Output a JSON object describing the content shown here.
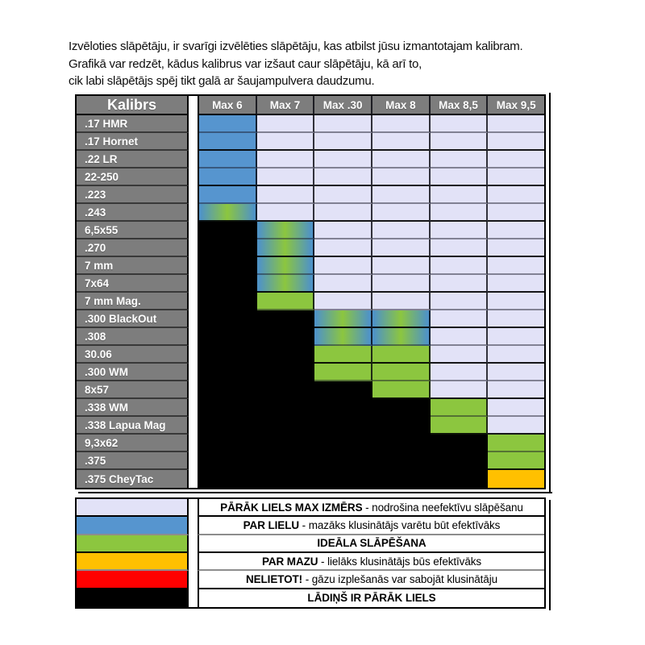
{
  "intro": {
    "lines": [
      "Izvēloties slāpētāju, ir svarīgi izvēlēties slāpētāju, kas atbilst jūsu izmantotajam kalibram.",
      "Grafikā var redzēt, kādus kalibrus var izšaut caur slāpētāju, kā arī to,",
      "cik labi slāpētājs spēj tikt galā ar šaujampulvera daudzumu."
    ]
  },
  "chart_data": {
    "type": "heatmap",
    "corner_label": "Kalibrs",
    "x_categories": [
      "Max 6",
      "Max 7",
      "Max .30",
      "Max 8",
      "Max 8,5",
      "Max 9,5"
    ],
    "cell_states_legend": [
      "lav = pārāk liels max izmērs",
      "blue = par lielu",
      "grad = pāreja no par lielu uz ideālu (blue→green gradients)",
      "green = ideāla slāpēšana",
      "orange = par mazu",
      "black = lādiņš ir pārāk liels"
    ],
    "rows": [
      {
        "label": ".17 HMR",
        "cells": [
          "blue",
          "lav",
          "lav",
          "lav",
          "lav",
          "lav"
        ]
      },
      {
        "label": ".17 Hornet",
        "cells": [
          "blue",
          "lav",
          "lav",
          "lav",
          "lav",
          "lav"
        ]
      },
      {
        "label": ".22 LR",
        "cells": [
          "blue",
          "lav",
          "lav",
          "lav",
          "lav",
          "lav"
        ]
      },
      {
        "label": "22-250",
        "cells": [
          "blue",
          "lav",
          "lav",
          "lav",
          "lav",
          "lav"
        ]
      },
      {
        "label": ".223",
        "cells": [
          "blue",
          "lav",
          "lav",
          "lav",
          "lav",
          "lav"
        ]
      },
      {
        "label": ".243",
        "cells": [
          "grad",
          "lav",
          "lav",
          "lav",
          "lav",
          "lav"
        ]
      },
      {
        "label": "6,5x55",
        "cells": [
          "black",
          "grad",
          "lav",
          "lav",
          "lav",
          "lav"
        ]
      },
      {
        "label": ".270",
        "cells": [
          "black",
          "grad",
          "lav",
          "lav",
          "lav",
          "lav"
        ]
      },
      {
        "label": "7 mm",
        "cells": [
          "black",
          "grad",
          "lav",
          "lav",
          "lav",
          "lav"
        ]
      },
      {
        "label": "7x64",
        "cells": [
          "black",
          "grad",
          "lav",
          "lav",
          "lav",
          "lav"
        ]
      },
      {
        "label": "7 mm Mag.",
        "cells": [
          "black",
          "green",
          "lav",
          "lav",
          "lav",
          "lav"
        ]
      },
      {
        "label": ".300 BlackOut",
        "cells": [
          "black",
          "black",
          "grad",
          "grad",
          "lav",
          "lav"
        ]
      },
      {
        "label": ".308",
        "cells": [
          "black",
          "black",
          "grad",
          "grad",
          "lav",
          "lav"
        ]
      },
      {
        "label": "30.06",
        "cells": [
          "black",
          "black",
          "green",
          "green",
          "lav",
          "lav"
        ]
      },
      {
        "label": ".300 WM",
        "cells": [
          "black",
          "black",
          "green",
          "green",
          "lav",
          "lav"
        ]
      },
      {
        "label": "8x57",
        "cells": [
          "black",
          "black",
          "black",
          "green",
          "lav",
          "lav"
        ]
      },
      {
        "label": ".338 WM",
        "cells": [
          "black",
          "black",
          "black",
          "black",
          "green",
          "lav"
        ]
      },
      {
        "label": ".338 Lapua Mag",
        "cells": [
          "black",
          "black",
          "black",
          "black",
          "green",
          "lav"
        ]
      },
      {
        "label": "9,3x62",
        "cells": [
          "black",
          "black",
          "black",
          "black",
          "black",
          "green"
        ]
      },
      {
        "label": ".375",
        "cells": [
          "black",
          "black",
          "black",
          "black",
          "black",
          "green"
        ]
      },
      {
        "label": ".375 CheyTac",
        "cells": [
          "black",
          "black",
          "black",
          "black",
          "black",
          "orange"
        ]
      }
    ]
  },
  "legend": {
    "items": [
      {
        "color": "lav",
        "head": "PĀRĀK LIELS MAX IZMĒRS",
        "rest": "- nodrošina neefektīvu slāpēšanu"
      },
      {
        "color": "blue",
        "head": "PAR LIELU",
        "rest": "- mazāks klusinātājs varētu būt efektīvāks"
      },
      {
        "color": "green",
        "head": "IDEĀLA SLĀPĒŠANA",
        "rest": ""
      },
      {
        "color": "orange",
        "head": "PAR MAZU",
        "rest": "- lielāks klusinātājs būs efektīvāks"
      },
      {
        "color": "red",
        "head": "NELIETOT!",
        "rest": "- gāzu izplešanās var sabojāt klusinātāju"
      },
      {
        "color": "black",
        "head": "LĀDIŅŠ IR PĀRĀK LIELS",
        "rest": ""
      }
    ]
  },
  "colors": {
    "lav": "#e2e2f7",
    "blue": "#5695cf",
    "grad_blue": "#4f93c6",
    "green": "#8cc63f",
    "orange": "#ffc000",
    "red": "#ff0000",
    "black": "#000000",
    "header_bg": "#7d7d7d",
    "white": "#ffffff"
  }
}
